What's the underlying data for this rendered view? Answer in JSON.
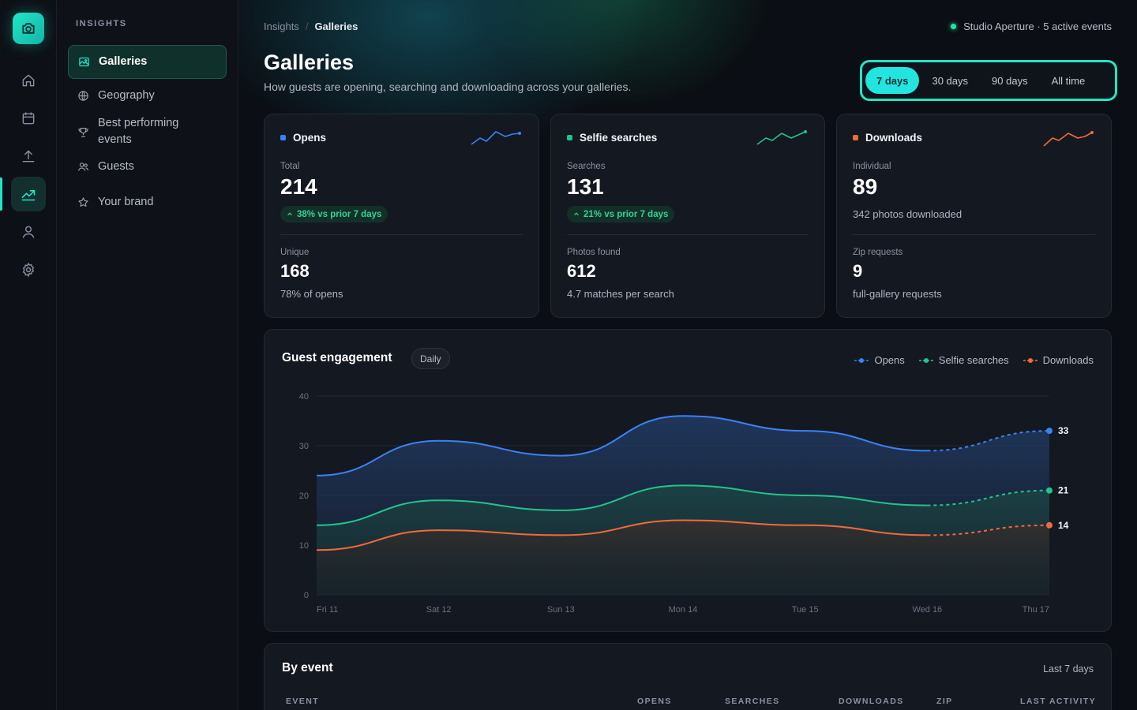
{
  "nav_rail": {
    "items": [
      {
        "icon": "home-icon"
      },
      {
        "icon": "calendar-icon"
      },
      {
        "icon": "upload-icon"
      },
      {
        "icon": "chart-icon",
        "active": true
      },
      {
        "icon": "user-icon"
      },
      {
        "icon": "gear-icon"
      }
    ]
  },
  "sidebar": {
    "heading": "INSIGHTS",
    "items": [
      {
        "label": "Galleries",
        "icon": "image-icon",
        "active": true
      },
      {
        "label": "Geography",
        "icon": "globe-icon"
      },
      {
        "label": "Best performing events",
        "icon": "trophy-icon"
      },
      {
        "label": "Guests",
        "icon": "users-icon"
      },
      {
        "label": "Your brand",
        "icon": "star-icon"
      }
    ]
  },
  "breadcrumb": {
    "parent": "Insights",
    "separator": "/",
    "current": "Galleries"
  },
  "studio_status": "Studio Aperture · 5 active events",
  "page": {
    "title": "Galleries",
    "subtitle": "How guests are opening, searching and downloading across your galleries."
  },
  "range_selector": {
    "options": [
      "7 days",
      "30 days",
      "90 days",
      "All time"
    ],
    "selected": "7 days"
  },
  "cards": [
    {
      "title": "Opens",
      "color": "#3b82f6",
      "primary_label": "Total",
      "primary_value": "214",
      "change": "38% vs prior 7 days",
      "secondary_label": "Unique",
      "secondary_value": "168",
      "secondary_note": "78% of opens"
    },
    {
      "title": "Selfie searches",
      "color": "#22c48a",
      "primary_label": "Searches",
      "primary_value": "131",
      "change": "21% vs prior 7 days",
      "secondary_label": "Photos found",
      "secondary_value": "612",
      "secondary_note": "4.7 matches per search"
    },
    {
      "title": "Downloads",
      "color": "#f26a3a",
      "primary_label": "Individual",
      "primary_value": "89",
      "primary_note": "342 photos downloaded",
      "secondary_label": "Zip requests",
      "secondary_value": "9",
      "secondary_note": "full-gallery requests"
    }
  ],
  "engagement": {
    "title": "Guest engagement",
    "granularity": "Daily"
  },
  "chart_data": {
    "type": "line",
    "x": [
      "Fri 11",
      "Sat 12",
      "Sun 13",
      "Mon 14",
      "Tue 15",
      "Wed 16",
      "Thu 17"
    ],
    "ylim": [
      0,
      40
    ],
    "yticks": [
      0,
      10,
      20,
      30,
      40
    ],
    "grid": true,
    "legend_position": "top-right",
    "series": [
      {
        "name": "Opens",
        "color": "#3b82f6",
        "values": [
          24,
          31,
          28,
          36,
          33,
          29,
          33
        ]
      },
      {
        "name": "Selfie searches",
        "color": "#22c48a",
        "values": [
          14,
          19,
          17,
          22,
          20,
          18,
          21
        ]
      },
      {
        "name": "Downloads",
        "color": "#f26a3a",
        "values": [
          9,
          13,
          12,
          15,
          14,
          12,
          14
        ]
      }
    ],
    "projected_from_index": 5,
    "end_labels": [
      "33",
      "21",
      "14"
    ]
  },
  "by_event": {
    "title": "By event",
    "range": "Last 7 days",
    "columns": [
      "EVENT",
      "OPENS",
      "SEARCHES",
      "DOWNLOADS",
      "ZIP",
      "LAST ACTIVITY"
    ]
  }
}
